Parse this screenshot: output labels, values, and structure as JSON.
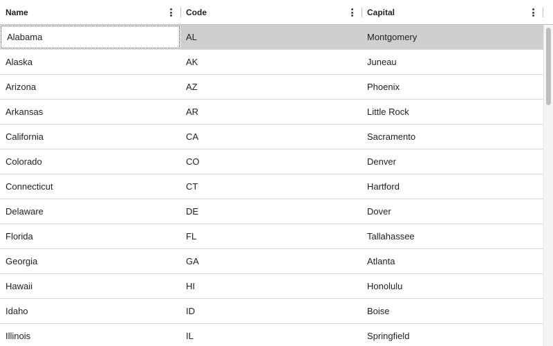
{
  "columns": [
    {
      "key": "name",
      "label": "Name"
    },
    {
      "key": "code",
      "label": "Code"
    },
    {
      "key": "capital",
      "label": "Capital"
    }
  ],
  "rows": [
    {
      "name": "Alabama",
      "code": "AL",
      "capital": "Montgomery"
    },
    {
      "name": "Alaska",
      "code": "AK",
      "capital": "Juneau"
    },
    {
      "name": "Arizona",
      "code": "AZ",
      "capital": "Phoenix"
    },
    {
      "name": "Arkansas",
      "code": "AR",
      "capital": "Little Rock"
    },
    {
      "name": "California",
      "code": "CA",
      "capital": "Sacramento"
    },
    {
      "name": "Colorado",
      "code": "CO",
      "capital": "Denver"
    },
    {
      "name": "Connecticut",
      "code": "CT",
      "capital": "Hartford"
    },
    {
      "name": "Delaware",
      "code": "DE",
      "capital": "Dover"
    },
    {
      "name": "Florida",
      "code": "FL",
      "capital": "Tallahassee"
    },
    {
      "name": "Georgia",
      "code": "GA",
      "capital": "Atlanta"
    },
    {
      "name": "Hawaii",
      "code": "HI",
      "capital": "Honolulu"
    },
    {
      "name": "Idaho",
      "code": "ID",
      "capital": "Boise"
    },
    {
      "name": "Illinois",
      "code": "IL",
      "capital": "Springfield"
    }
  ],
  "selection": {
    "row": 0,
    "focused_column": "name"
  },
  "icons": {
    "column_menu": "more-vert-icon"
  },
  "colors": {
    "selected_row": "#cfcfcf",
    "border": "#d9d9d9",
    "text": "#212121"
  }
}
